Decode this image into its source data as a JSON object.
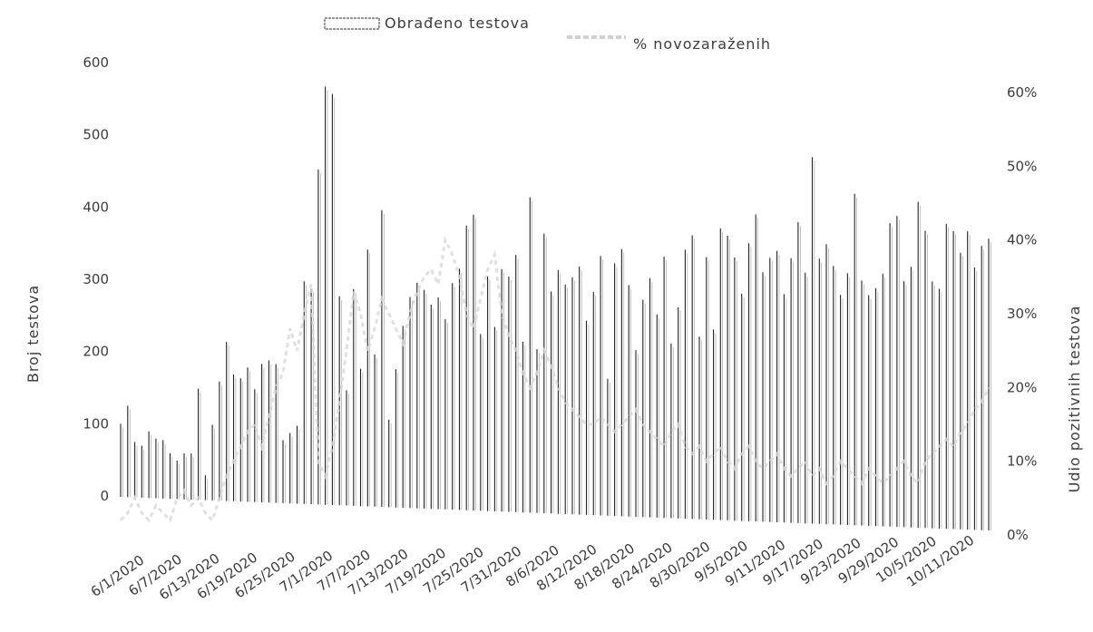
{
  "chart_data": {
    "type": "bar",
    "x_start": "6/1/2020",
    "x_end": "10/15/2020",
    "x_tick_labels": [
      "6/1/2020",
      "6/7/2020",
      "6/13/2020",
      "6/19/2020",
      "6/25/2020",
      "7/1/2020",
      "7/7/2020",
      "7/13/2020",
      "7/19/2020",
      "7/25/2020",
      "7/31/2020",
      "8/6/2020",
      "8/12/2020",
      "8/18/2020",
      "8/24/2020",
      "8/30/2020",
      "9/5/2020",
      "9/11/2020",
      "9/17/2020",
      "9/23/2020",
      "9/29/2020",
      "10/5/2020",
      "10/11/2020"
    ],
    "y_left": {
      "label": "Broj testova",
      "ticks": [
        "0",
        "100",
        "200",
        "300",
        "400",
        "500",
        "600"
      ],
      "range": [
        0,
        600
      ]
    },
    "y_right": {
      "label": "Udio pozitivnih testova",
      "ticks": [
        "0%",
        "10%",
        "20%",
        "30%",
        "40%",
        "50%",
        "60%"
      ],
      "range": [
        0,
        0.6
      ]
    },
    "legend": {
      "position": "top-center",
      "items": [
        "Obrađeno testova",
        "% novozaraženih"
      ]
    },
    "series": [
      {
        "name": "Obrađeno testova",
        "kind": "bar",
        "color": "#222222",
        "values": [
          100,
          125,
          75,
          70,
          90,
          80,
          78,
          60,
          50,
          60,
          60,
          150,
          30,
          100,
          160,
          215,
          170,
          165,
          180,
          150,
          185,
          190,
          185,
          80,
          90,
          100,
          300,
          290,
          455,
          570,
          560,
          280,
          150,
          290,
          180,
          345,
          200,
          400,
          110,
          180,
          240,
          280,
          300,
          290,
          270,
          280,
          250,
          300,
          320,
          380,
          395,
          230,
          310,
          240,
          320,
          310,
          340,
          220,
          420,
          210,
          370,
          290,
          320,
          300,
          310,
          325,
          250,
          290,
          340,
          170,
          330,
          350,
          300,
          210,
          280,
          310,
          260,
          340,
          220,
          270,
          350,
          370,
          230,
          340,
          240,
          380,
          370,
          340,
          290,
          360,
          400,
          320,
          340,
          350,
          290,
          340,
          390,
          320,
          480,
          340,
          360,
          330,
          290,
          320,
          430,
          310,
          290,
          300,
          320,
          390,
          400,
          310,
          330,
          420,
          380,
          310,
          300,
          390,
          380,
          350,
          380,
          330,
          360,
          370
        ]
      },
      {
        "name": "% novozaraženih",
        "kind": "line",
        "color": "#d8d8d8",
        "values": [
          0.02,
          0.03,
          0.05,
          0.03,
          0.02,
          0.04,
          0.03,
          0.02,
          0.05,
          0.06,
          0.04,
          0.05,
          0.03,
          0.02,
          0.05,
          0.08,
          0.1,
          0.12,
          0.14,
          0.15,
          0.12,
          0.16,
          0.2,
          0.22,
          0.28,
          0.25,
          0.3,
          0.34,
          0.1,
          0.08,
          0.12,
          0.18,
          0.25,
          0.33,
          0.3,
          0.25,
          0.28,
          0.32,
          0.3,
          0.28,
          0.26,
          0.3,
          0.33,
          0.35,
          0.36,
          0.34,
          0.4,
          0.38,
          0.35,
          0.3,
          0.28,
          0.32,
          0.36,
          0.38,
          0.3,
          0.27,
          0.25,
          0.22,
          0.2,
          0.22,
          0.25,
          0.23,
          0.2,
          0.18,
          0.17,
          0.16,
          0.15,
          0.15,
          0.16,
          0.15,
          0.14,
          0.15,
          0.16,
          0.17,
          0.15,
          0.14,
          0.13,
          0.12,
          0.14,
          0.15,
          0.12,
          0.11,
          0.12,
          0.1,
          0.11,
          0.12,
          0.1,
          0.09,
          0.11,
          0.12,
          0.1,
          0.09,
          0.1,
          0.11,
          0.09,
          0.08,
          0.09,
          0.1,
          0.08,
          0.09,
          0.07,
          0.08,
          0.1,
          0.09,
          0.08,
          0.07,
          0.09,
          0.08,
          0.07,
          0.08,
          0.09,
          0.1,
          0.08,
          0.07,
          0.1,
          0.11,
          0.12,
          0.13,
          0.12,
          0.14,
          0.15,
          0.17,
          0.18,
          0.2
        ]
      }
    ],
    "grid": false
  }
}
